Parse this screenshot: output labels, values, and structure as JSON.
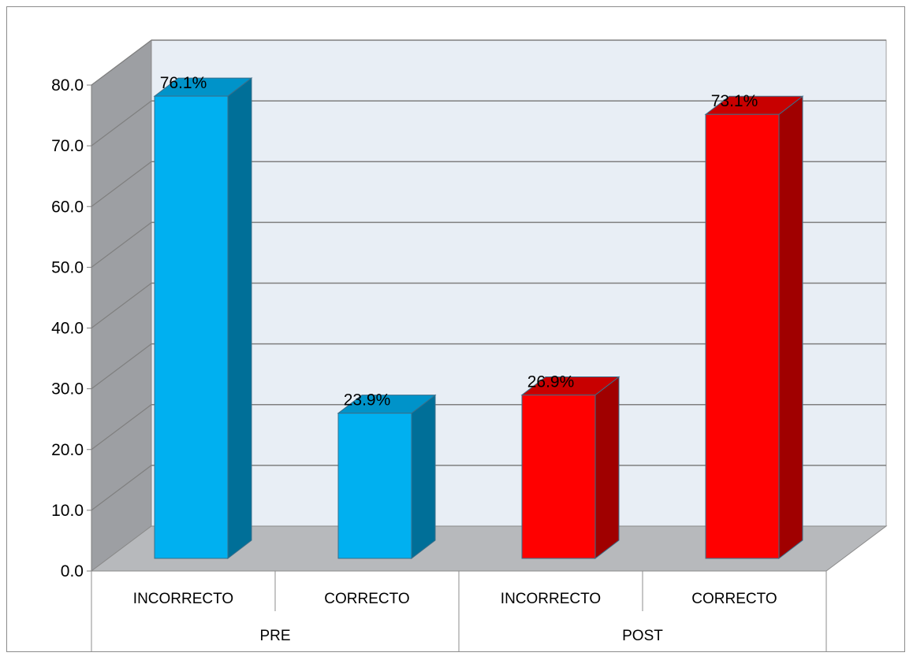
{
  "chart_data": {
    "type": "bar",
    "title": "",
    "xlabel": "",
    "ylabel": "",
    "ylim": [
      0,
      80
    ],
    "y_ticks": [
      "0.0",
      "10.0",
      "20.0",
      "30.0",
      "40.0",
      "50.0",
      "60.0",
      "70.0",
      "80.0"
    ],
    "grid": true,
    "legend": "none",
    "groups": [
      {
        "label": "PRE",
        "categories": [
          "INCORRECTO",
          "CORRECTO"
        ]
      },
      {
        "label": "POST",
        "categories": [
          "INCORRECTO",
          "CORRECTO"
        ]
      }
    ],
    "categories": [
      "INCORRECTO",
      "CORRECTO",
      "INCORRECTO",
      "CORRECTO"
    ],
    "values": [
      76.1,
      23.9,
      26.9,
      73.1
    ],
    "data_labels": [
      "76.1%",
      "23.9%",
      "26.9%",
      "73.1%"
    ],
    "colors": {
      "PRE": {
        "front": "#00B0F0",
        "side": "#006F98",
        "top": "#0093C9"
      },
      "POST": {
        "front": "#FF0000",
        "side": "#A00000",
        "top": "#C80000"
      },
      "wall": "#E8EEF5",
      "side_wall": "#9D9FA3",
      "floor": "#B7B9BC"
    }
  }
}
